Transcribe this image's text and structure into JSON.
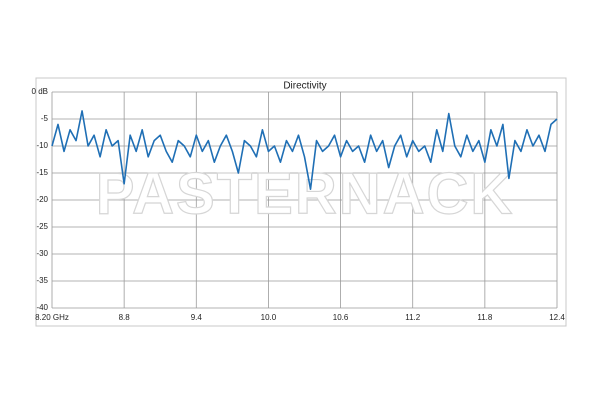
{
  "chart_data": {
    "type": "line",
    "title": "Directivity",
    "watermark": "PASTERNACK",
    "x": [
      8.2,
      8.25,
      8.3,
      8.35,
      8.4,
      8.45,
      8.5,
      8.55,
      8.6,
      8.65,
      8.7,
      8.75,
      8.8,
      8.85,
      8.9,
      8.95,
      9.0,
      9.05,
      9.1,
      9.15,
      9.2,
      9.25,
      9.3,
      9.35,
      9.4,
      9.45,
      9.5,
      9.55,
      9.6,
      9.65,
      9.7,
      9.75,
      9.8,
      9.85,
      9.9,
      9.95,
      10.0,
      10.05,
      10.1,
      10.15,
      10.2,
      10.25,
      10.3,
      10.35,
      10.4,
      10.45,
      10.5,
      10.55,
      10.6,
      10.65,
      10.7,
      10.75,
      10.8,
      10.85,
      10.9,
      10.95,
      11.0,
      11.05,
      11.1,
      11.15,
      11.2,
      11.25,
      11.3,
      11.35,
      11.4,
      11.45,
      11.5,
      11.55,
      11.6,
      11.65,
      11.7,
      11.75,
      11.8,
      11.85,
      11.9,
      11.95,
      12.0,
      12.05,
      12.1,
      12.15,
      12.2,
      12.25,
      12.3,
      12.35,
      12.4
    ],
    "series": [
      {
        "name": "Directivity",
        "color": "#1f6fb5",
        "values": [
          -10,
          -6,
          -11,
          -7,
          -9,
          -3.5,
          -10,
          -8,
          -12,
          -7,
          -10,
          -9,
          -17,
          -8,
          -11,
          -7,
          -12,
          -9,
          -8,
          -11,
          -13,
          -9,
          -10,
          -12,
          -8,
          -11,
          -9,
          -13,
          -10,
          -8,
          -11,
          -15,
          -9,
          -10,
          -12,
          -7,
          -11,
          -10,
          -13,
          -9,
          -11,
          -8,
          -12,
          -18,
          -9,
          -11,
          -10,
          -8,
          -12,
          -9,
          -11,
          -10,
          -13,
          -8,
          -11,
          -9,
          -14,
          -10,
          -8,
          -12,
          -9,
          -11,
          -10,
          -13,
          -7,
          -11,
          -4,
          -10,
          -12,
          -8,
          -11,
          -9,
          -13,
          -7,
          -10,
          -6,
          -16,
          -9,
          -11,
          -7,
          -10,
          -8,
          -11,
          -6,
          -5
        ]
      }
    ],
    "xlim": [
      8.2,
      12.4
    ],
    "xticks": [
      {
        "value": 8.2,
        "label": "8.20 GHz"
      },
      8.8,
      9.4,
      {
        "value": 10,
        "label": "10.0"
      },
      10.6,
      11.2,
      11.8,
      12.4
    ],
    "ylim": [
      -40,
      0
    ],
    "yticks": [
      {
        "value": 0,
        "label": "0 dB"
      },
      -5,
      -10,
      -15,
      -20,
      -25,
      -30,
      -35,
      -40
    ],
    "grid": true
  }
}
